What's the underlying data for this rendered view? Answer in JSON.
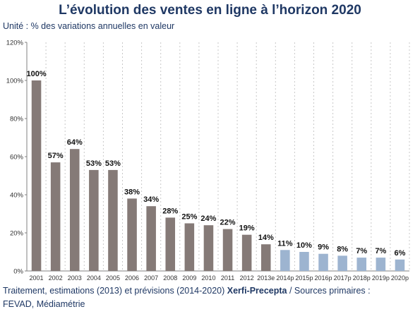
{
  "title": "L’évolution des ventes en ligne à l’horizon 2020",
  "subtitle": "Unité : % des variations annuelles en valeur",
  "source": {
    "prefix": "Traitement, estimations (2013) et prévisions (2014-2020) ",
    "brand": "Xerfi-Precepta",
    "suffix": " / Sources primaires :",
    "line2": "FEVAD, Médiamétrie"
  },
  "colors": {
    "actual": "#857a77",
    "forecast": "#9db4d0",
    "title": "#1f3864"
  },
  "chart_data": {
    "type": "bar",
    "categories": [
      "2001",
      "2002",
      "2003",
      "2004",
      "2005",
      "2006",
      "2007",
      "2008",
      "2009",
      "2010",
      "2011",
      "2012",
      "2013e",
      "2014p",
      "2015p",
      "2016p",
      "2017p",
      "2018p",
      "2019p",
      "2020p"
    ],
    "values": [
      100,
      57,
      64,
      53,
      53,
      38,
      34,
      28,
      25,
      24,
      22,
      19,
      14,
      11,
      10,
      9,
      8,
      7,
      7,
      6
    ],
    "labels": [
      "100%",
      "57%",
      "64%",
      "53%",
      "53%",
      "38%",
      "34%",
      "28%",
      "25%",
      "24%",
      "22%",
      "19%",
      "14%",
      "11%",
      "10%",
      "9%",
      "8%",
      "7%",
      "7%",
      "6%"
    ],
    "forecast_from_index": 13,
    "ylim": [
      0,
      120
    ],
    "yticks": [
      0,
      20,
      40,
      60,
      80,
      100,
      120
    ],
    "ytick_labels": [
      "0%",
      "20%",
      "40%",
      "60%",
      "80%",
      "100%",
      "120%"
    ],
    "grid": "vertical-dotted"
  }
}
